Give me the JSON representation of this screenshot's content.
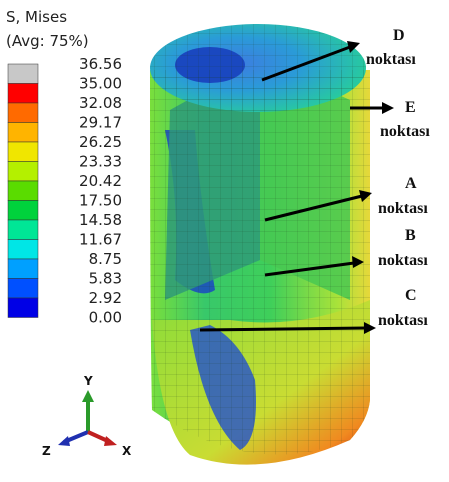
{
  "legend": {
    "title": "S, Mises",
    "subtitle": "(Avg: 75%)",
    "values": [
      "36.56",
      "35.00",
      "32.08",
      "29.17",
      "26.25",
      "23.33",
      "20.42",
      "17.50",
      "14.58",
      "11.67",
      "8.75",
      "5.83",
      "2.92",
      "0.00"
    ]
  },
  "annotations": [
    {
      "letter": "D",
      "word": "noktası"
    },
    {
      "letter": "E",
      "word": "noktası"
    },
    {
      "letter": "A",
      "word": "noktası"
    },
    {
      "letter": "B",
      "word": "noktası"
    },
    {
      "letter": "C",
      "word": "noktası"
    }
  ],
  "triad": {
    "y": "Y",
    "z": "Z",
    "x": "X"
  }
}
